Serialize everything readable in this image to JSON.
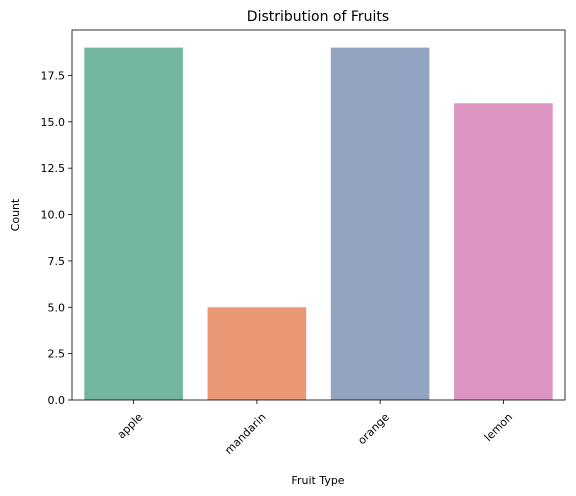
{
  "chart_data": {
    "type": "bar",
    "title": "Distribution of Fruits",
    "xlabel": "Fruit Type",
    "ylabel": "Count",
    "categories": [
      "apple",
      "mandarin",
      "orange",
      "lemon"
    ],
    "values": [
      19,
      5,
      19,
      16
    ],
    "colors": [
      "#73b6a0",
      "#e99775",
      "#93a4c3",
      "#dc95c0"
    ],
    "ylim": [
      0,
      19.95
    ],
    "yticks": [
      0.0,
      2.5,
      5.0,
      7.5,
      10.0,
      12.5,
      15.0,
      17.5
    ],
    "ytick_labels": [
      "0.0",
      "2.5",
      "5.0",
      "7.5",
      "10.0",
      "12.5",
      "15.0",
      "17.5"
    ],
    "xtick_rotation": 45,
    "grid": false,
    "legend": "none"
  }
}
